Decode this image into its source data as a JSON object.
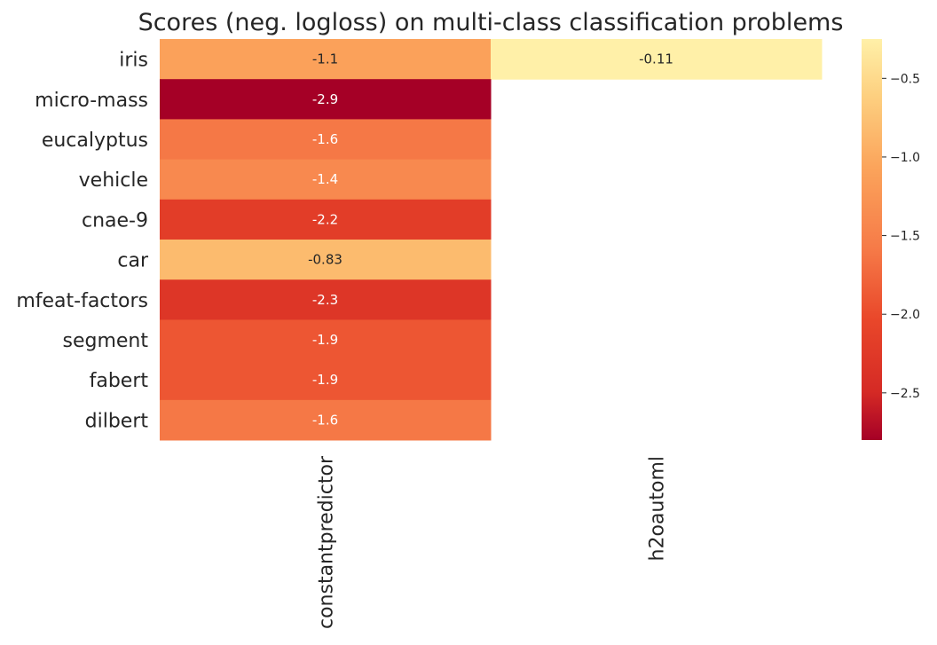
{
  "chart_data": {
    "type": "heatmap",
    "title": "Scores (neg. logloss) on  multi-class classification problems",
    "rows": [
      "iris",
      "micro-mass",
      "eucalyptus",
      "vehicle",
      "cnae-9",
      "car",
      "mfeat-factors",
      "segment",
      "fabert",
      "dilbert"
    ],
    "columns": [
      "constantpredictor",
      "h2oautoml"
    ],
    "values": [
      [
        -1.1,
        -0.11
      ],
      [
        -2.9,
        null
      ],
      [
        -1.6,
        null
      ],
      [
        -1.4,
        null
      ],
      [
        -2.2,
        null
      ],
      [
        -0.83,
        null
      ],
      [
        -2.3,
        null
      ],
      [
        -1.9,
        null
      ],
      [
        -1.9,
        null
      ],
      [
        -1.6,
        null
      ]
    ],
    "cell_labels": [
      [
        "-1.1",
        "-0.11"
      ],
      [
        "-2.9",
        ""
      ],
      [
        "-1.6",
        ""
      ],
      [
        "-1.4",
        ""
      ],
      [
        "-2.2",
        ""
      ],
      [
        "-0.83",
        ""
      ],
      [
        "-2.3",
        ""
      ],
      [
        "-1.9",
        ""
      ],
      [
        "-1.9",
        ""
      ],
      [
        "-1.6",
        ""
      ]
    ],
    "colormap": "YlOrRd_r",
    "color_range": [
      -2.8,
      -0.25
    ],
    "colorbar": {
      "ticks": [
        -0.5,
        -1.0,
        -1.5,
        -2.0,
        -2.5
      ],
      "tick_labels": [
        "−0.5",
        "−1.0",
        "−1.5",
        "−2.0",
        "−2.5"
      ]
    },
    "grid": false,
    "legend": "right"
  }
}
